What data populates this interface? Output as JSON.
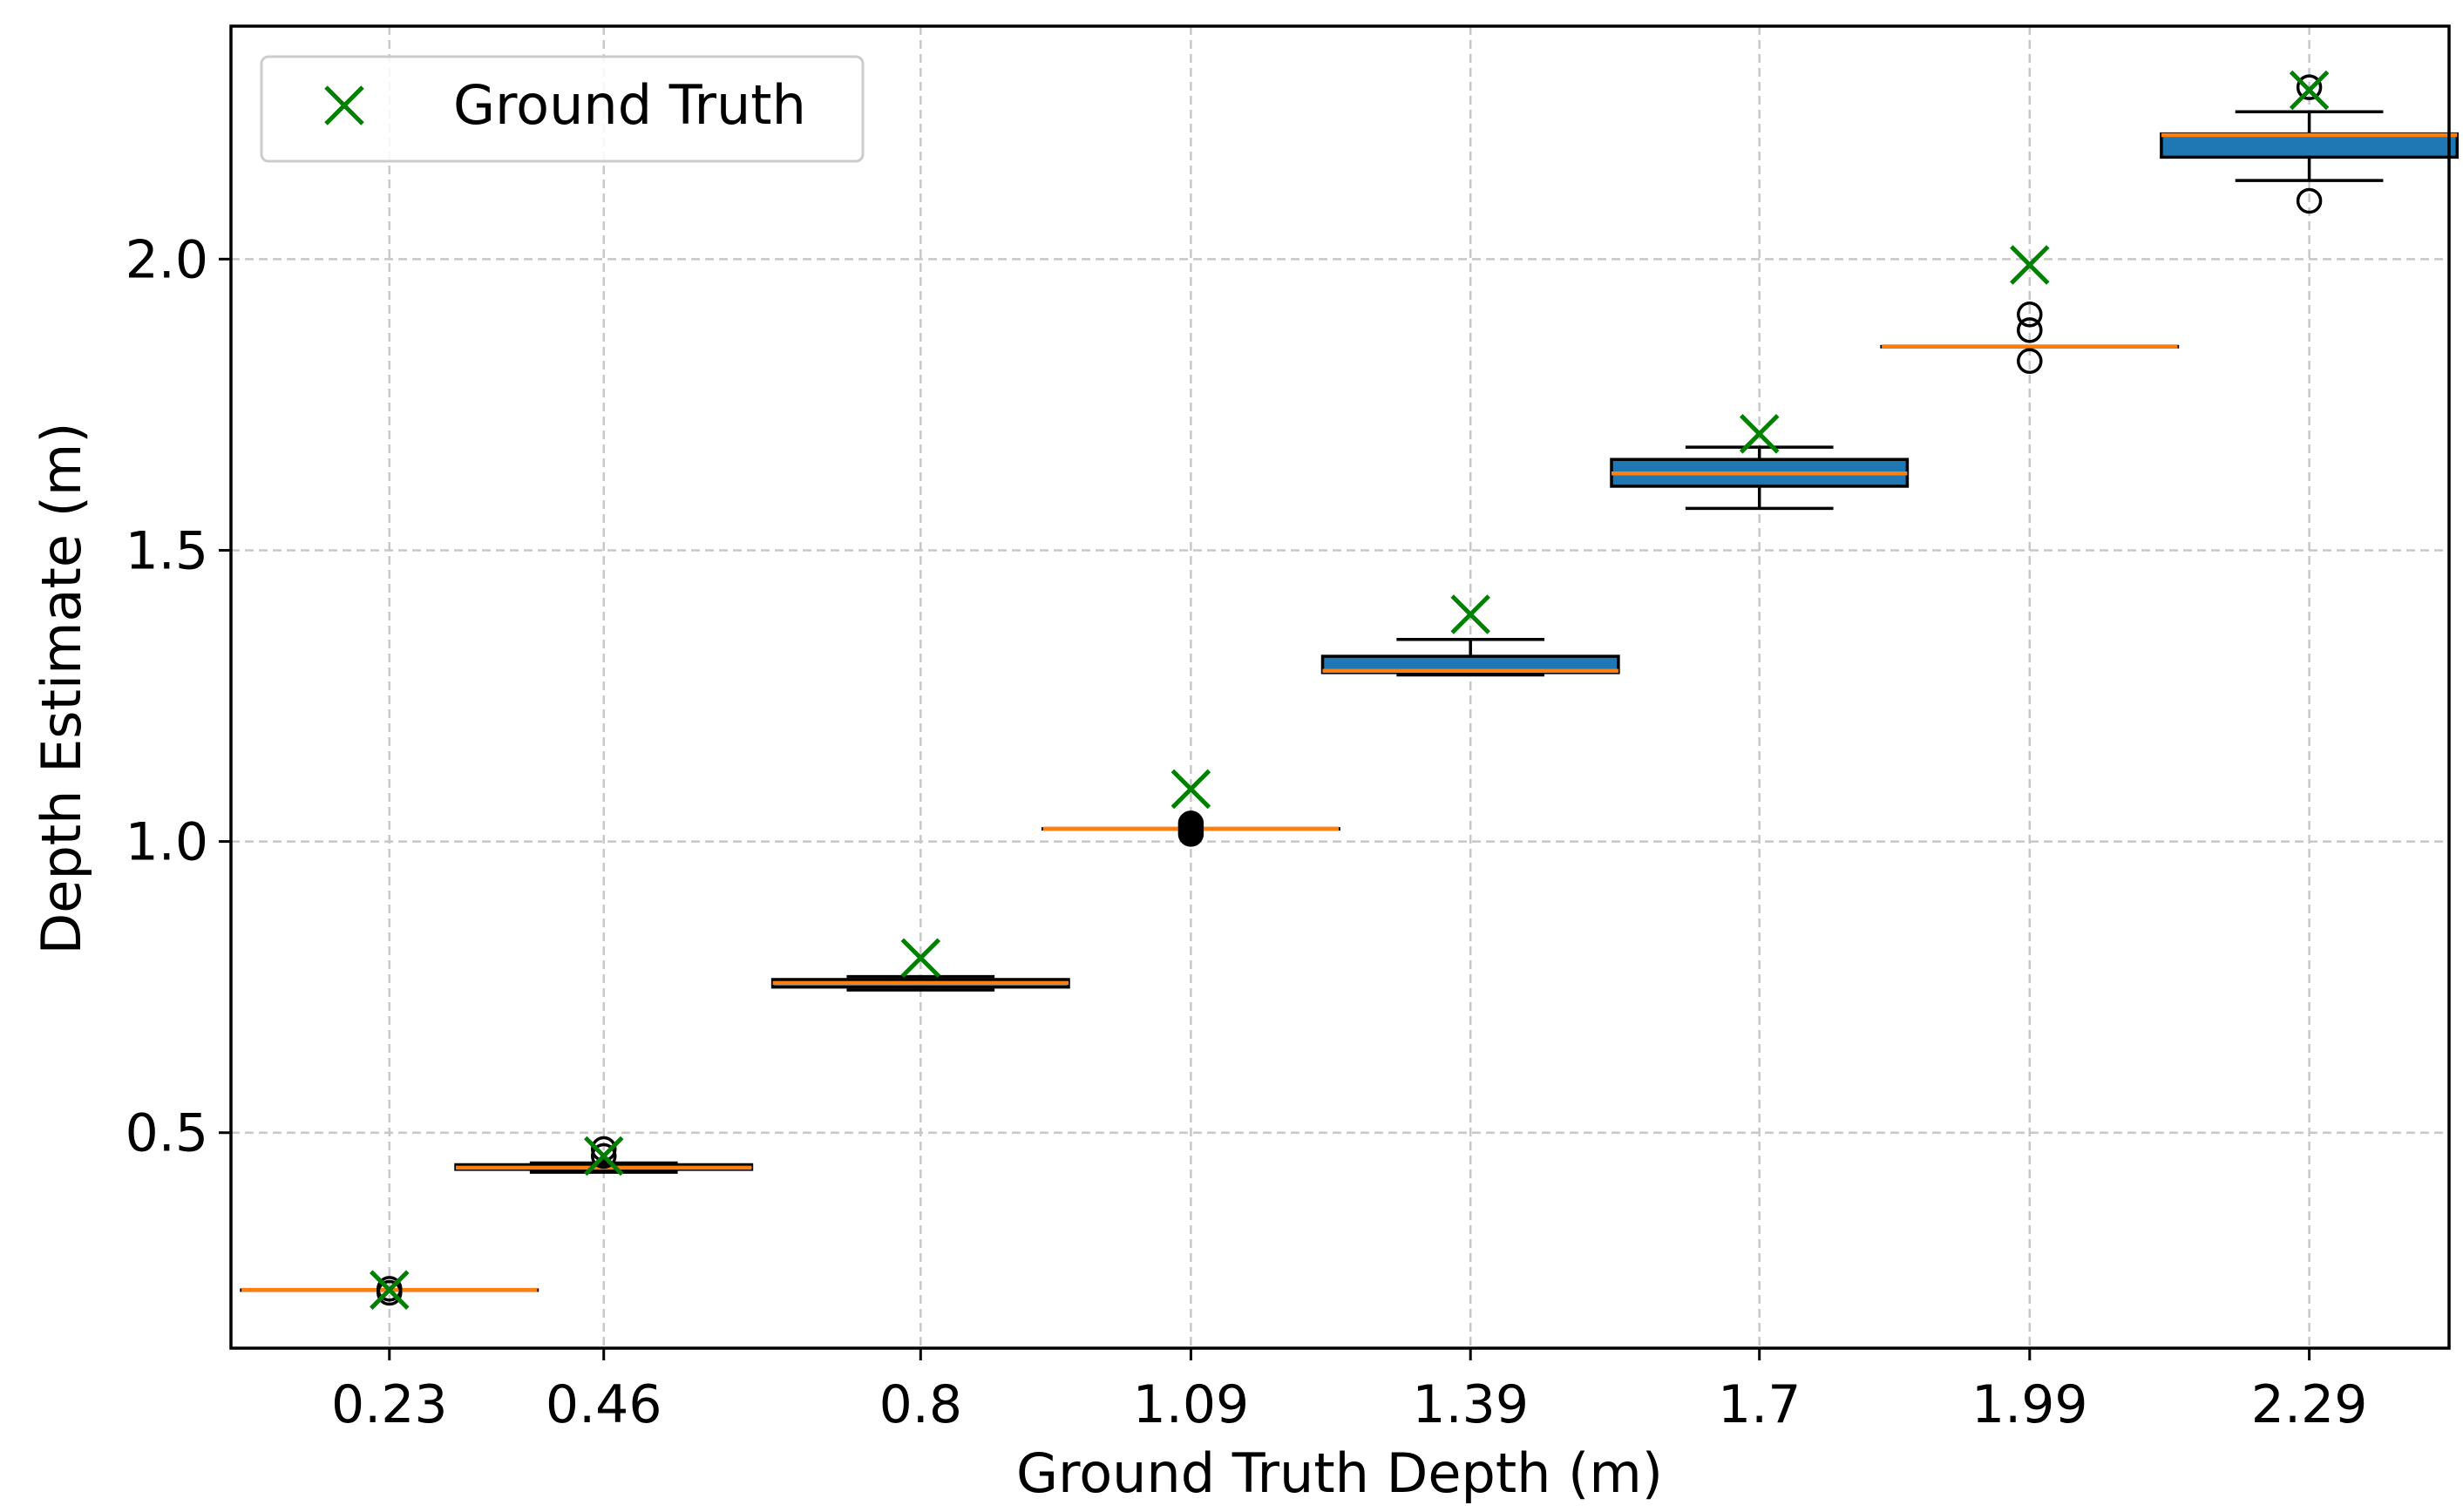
{
  "chart_data": {
    "type": "box",
    "title": "",
    "xlabel": "Ground Truth Depth (m)",
    "ylabel": "Depth Estimate (m)",
    "xlim": [
      0.06,
      2.44
    ],
    "ylim": [
      0.13,
      2.4
    ],
    "xticks": [
      0.23,
      0.46,
      0.8,
      1.09,
      1.39,
      1.7,
      1.99,
      2.29
    ],
    "xtick_labels": [
      "0.23",
      "0.46",
      "0.8",
      "1.09",
      "1.39",
      "1.7",
      "1.99",
      "2.29"
    ],
    "yticks": [
      0.5,
      1.0,
      1.5,
      2.0
    ],
    "ytick_labels": [
      "0.5",
      "1.0",
      "1.5",
      "2.0"
    ],
    "grid": true,
    "legend": {
      "position": "top-left",
      "entries": [
        {
          "label": "Ground Truth",
          "marker": "x",
          "color": "#008000"
        }
      ]
    },
    "colors": {
      "box_fill": "#1f77b4",
      "median": "#ff7f0e",
      "ground_truth": "#008000",
      "grid": "#c8c8c8"
    },
    "boxes": [
      {
        "x": 0.23,
        "q1": 0.23,
        "median": 0.23,
        "q3": 0.23,
        "whisker_low": 0.23,
        "whisker_high": 0.23,
        "outliers": [
          0.225,
          0.232
        ],
        "outlier_fill": "none"
      },
      {
        "x": 0.46,
        "q1": 0.437,
        "median": 0.44,
        "q3": 0.445,
        "whisker_low": 0.432,
        "whisker_high": 0.448,
        "outliers": [
          0.46,
          0.472
        ],
        "outlier_fill": "none"
      },
      {
        "x": 0.8,
        "q1": 0.75,
        "median": 0.757,
        "q3": 0.763,
        "whisker_low": 0.745,
        "whisker_high": 0.768,
        "outliers": [],
        "outlier_fill": "none"
      },
      {
        "x": 1.09,
        "q1": 1.022,
        "median": 1.022,
        "q3": 1.022,
        "whisker_low": 1.022,
        "whisker_high": 1.022,
        "outliers": [
          1.013,
          1.018,
          1.026,
          1.031
        ],
        "outlier_fill": "#000000"
      },
      {
        "x": 1.39,
        "q1": 1.29,
        "median": 1.293,
        "q3": 1.318,
        "whisker_low": 1.286,
        "whisker_high": 1.347,
        "outliers": [],
        "outlier_fill": "none"
      },
      {
        "x": 1.7,
        "q1": 1.61,
        "median": 1.632,
        "q3": 1.656,
        "whisker_low": 1.572,
        "whisker_high": 1.677,
        "outliers": [],
        "outlier_fill": "none"
      },
      {
        "x": 1.99,
        "q1": 1.85,
        "median": 1.85,
        "q3": 1.85,
        "whisker_low": 1.85,
        "whisker_high": 1.85,
        "outliers": [
          1.825,
          1.878,
          1.905
        ],
        "outlier_fill": "none"
      },
      {
        "x": 2.29,
        "q1": 2.175,
        "median": 2.213,
        "q3": 2.215,
        "whisker_low": 2.135,
        "whisker_high": 2.253,
        "outliers": [
          2.1,
          2.295
        ],
        "outlier_fill": "none"
      }
    ],
    "ground_truth": [
      {
        "x": 0.23,
        "y": 0.23
      },
      {
        "x": 0.46,
        "y": 0.46
      },
      {
        "x": 0.8,
        "y": 0.8
      },
      {
        "x": 1.09,
        "y": 1.09
      },
      {
        "x": 1.39,
        "y": 1.39
      },
      {
        "x": 1.7,
        "y": 1.7
      },
      {
        "x": 1.99,
        "y": 1.99
      },
      {
        "x": 2.29,
        "y": 2.29
      }
    ]
  }
}
